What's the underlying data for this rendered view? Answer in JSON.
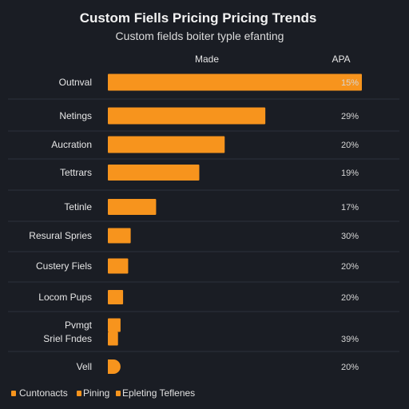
{
  "chart_data": {
    "type": "bar",
    "orientation": "horizontal",
    "title": "Custom Fiells Pricing Pricing Trends",
    "subtitle": "Custom fields boiter typle efanting",
    "column_headers": [
      "Made",
      "APA"
    ],
    "categories": [
      "Outnval",
      "Netings",
      "Aucration",
      "Tettrars",
      "Tetinle",
      "Resural Spries",
      "Custery Fiels",
      "Locom Pups",
      "Pvmgt",
      "Sriel Fndes",
      "Vell"
    ],
    "values": [
      100,
      62,
      46,
      36,
      19,
      9,
      8,
      6,
      5,
      4,
      5
    ],
    "value_labels": [
      "15%",
      "29%",
      "20%",
      "19%",
      "17%",
      "30%",
      "20%",
      "20%",
      "",
      "39%",
      "20%"
    ],
    "xlim": [
      0,
      100
    ],
    "grid": true,
    "bar_color": "#f7941d",
    "legend_position": "bottom-left",
    "legend": [
      "Cuntonacts",
      "Pining",
      "Epleting Teflenes"
    ]
  },
  "colors": {
    "background": "#1a1d24",
    "bar": "#f7941d",
    "grid": "#2c313b"
  }
}
